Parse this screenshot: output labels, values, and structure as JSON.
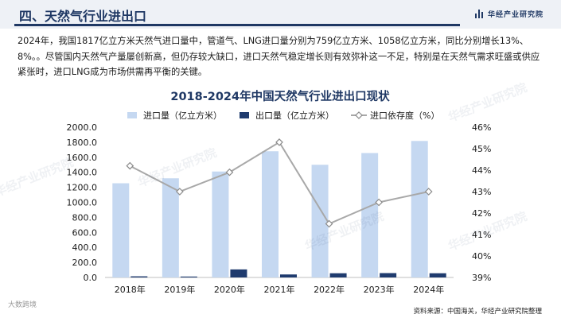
{
  "header": {
    "title": "四、天然气行业进出口",
    "brand": "华经产业研究院"
  },
  "intro": "2024年，我国1817亿立方米天然气进口量中，管道气、LNG进口量分别为759亿立方米、1058亿立方米，同比分别增长13%、8%。。尽管国内天然气产量屡创新高，但仍存较大缺口，进口天然气稳定增长则有效弥补这一不足，特别是在天然气需求旺盛或供应紧张时，进口LNG成为市场供需再平衡的关键。",
  "chart_data": {
    "type": "bar",
    "title": "2018-2024年中国天然气行业进出口现状",
    "categories": [
      "2018年",
      "2019年",
      "2020年",
      "2021年",
      "2022年",
      "2023年",
      "2024年"
    ],
    "series": [
      {
        "name": "进口量（亿立方米）",
        "type": "bar",
        "axis": "left",
        "color": "#c5d8f1",
        "values": [
          1254,
          1320,
          1410,
          1680,
          1500,
          1656,
          1817
        ]
      },
      {
        "name": "出口量（亿立方米）",
        "type": "bar",
        "axis": "left",
        "color": "#1f3b6e",
        "values": [
          15,
          12,
          107,
          40,
          56,
          58,
          56
        ]
      },
      {
        "name": "进口依存度（%）",
        "type": "line",
        "axis": "right",
        "color": "#a8a8a8",
        "values": [
          44.2,
          43.0,
          43.9,
          45.3,
          41.5,
          42.5,
          43.0
        ]
      }
    ],
    "y_left": {
      "range": [
        0,
        2000
      ],
      "step": 200,
      "ticks": [
        "0.0",
        "200.0",
        "400.0",
        "600.0",
        "800.0",
        "1000.0",
        "1200.0",
        "1400.0",
        "1600.0",
        "1800.0",
        "2000.0"
      ]
    },
    "y_right": {
      "range": [
        39,
        46
      ],
      "step": 1,
      "ticks": [
        "39%",
        "40%",
        "41%",
        "42%",
        "43%",
        "44%",
        "45%",
        "46%"
      ]
    },
    "grid": false,
    "legend": "top"
  },
  "watermark": "华经产业研究院",
  "footer": {
    "logo": "大数跨境",
    "source": "资料来源：中国海关，华经产业研究院整理"
  }
}
